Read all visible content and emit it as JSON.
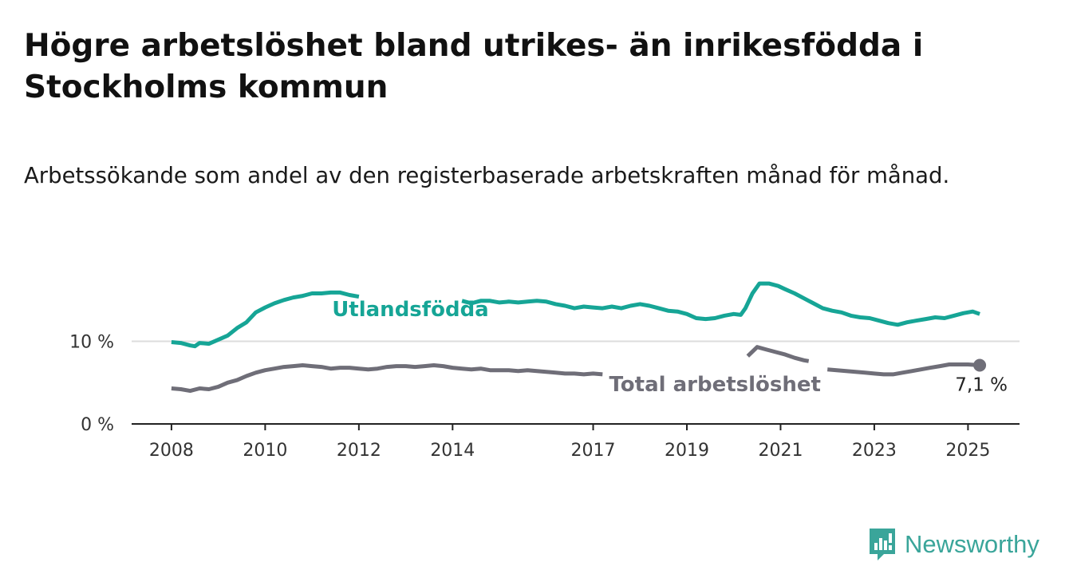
{
  "title": "Högre arbetslöshet bland utrikes- än inrikesfödda i Stockholms kommun",
  "subtitle": "Arbetssökande som andel av den registerbaserade arbetskraften månad för månad.",
  "logo": {
    "icon": "bar-chart-icon",
    "text": "Newsworthy"
  },
  "chart_data": {
    "type": "line",
    "title": "Högre arbetslöshet bland utrikes- än inrikesfödda i Stockholms kommun",
    "subtitle": "Arbetssökande som andel av den registerbaserade arbetskraften månad för månad.",
    "xlabel": "",
    "ylabel": "",
    "x_range": [
      2008.0,
      2025.25
    ],
    "x_display_range": [
      2007.15,
      2026.1
    ],
    "ylim": [
      0,
      20
    ],
    "x_ticks": [
      {
        "value": 2008,
        "label": "2008"
      },
      {
        "value": 2010,
        "label": "2010"
      },
      {
        "value": 2012,
        "label": "2012"
      },
      {
        "value": 2014,
        "label": "2014"
      },
      {
        "value": 2017,
        "label": "2017"
      },
      {
        "value": 2019,
        "label": "2019"
      },
      {
        "value": 2021,
        "label": "2021"
      },
      {
        "value": 2023,
        "label": "2023"
      },
      {
        "value": 2025,
        "label": "2025"
      }
    ],
    "y_ticks": [
      {
        "value": 0,
        "label": "0 %"
      },
      {
        "value": 10,
        "label": "10 %"
      }
    ],
    "grid": {
      "horizontal": true,
      "vertical": false
    },
    "legend": "inline labels",
    "series": [
      {
        "name": "Utlandsfödda",
        "color": "#16a596",
        "label": "Utlandsfödda",
        "gap": [
          2012.0,
          2014.2
        ],
        "points": [
          [
            2008.0,
            9.9
          ],
          [
            2008.2,
            9.8
          ],
          [
            2008.4,
            9.5
          ],
          [
            2008.5,
            9.4
          ],
          [
            2008.6,
            9.8
          ],
          [
            2008.8,
            9.7
          ],
          [
            2009.0,
            10.2
          ],
          [
            2009.2,
            10.7
          ],
          [
            2009.4,
            11.6
          ],
          [
            2009.6,
            12.3
          ],
          [
            2009.8,
            13.5
          ],
          [
            2010.0,
            14.1
          ],
          [
            2010.2,
            14.6
          ],
          [
            2010.4,
            15.0
          ],
          [
            2010.6,
            15.3
          ],
          [
            2010.8,
            15.5
          ],
          [
            2011.0,
            15.8
          ],
          [
            2011.2,
            15.8
          ],
          [
            2011.4,
            15.9
          ],
          [
            2011.6,
            15.9
          ],
          [
            2011.8,
            15.6
          ],
          [
            2012.0,
            15.4
          ],
          [
            2014.2,
            14.9
          ],
          [
            2014.4,
            14.6
          ],
          [
            2014.6,
            14.9
          ],
          [
            2014.8,
            14.9
          ],
          [
            2015.0,
            14.7
          ],
          [
            2015.2,
            14.8
          ],
          [
            2015.4,
            14.7
          ],
          [
            2015.6,
            14.8
          ],
          [
            2015.8,
            14.9
          ],
          [
            2016.0,
            14.8
          ],
          [
            2016.2,
            14.5
          ],
          [
            2016.4,
            14.3
          ],
          [
            2016.6,
            14.0
          ],
          [
            2016.8,
            14.2
          ],
          [
            2017.0,
            14.1
          ],
          [
            2017.2,
            14.0
          ],
          [
            2017.4,
            14.2
          ],
          [
            2017.6,
            14.0
          ],
          [
            2017.8,
            14.3
          ],
          [
            2018.0,
            14.5
          ],
          [
            2018.2,
            14.3
          ],
          [
            2018.4,
            14.0
          ],
          [
            2018.6,
            13.7
          ],
          [
            2018.8,
            13.6
          ],
          [
            2019.0,
            13.3
          ],
          [
            2019.2,
            12.8
          ],
          [
            2019.4,
            12.7
          ],
          [
            2019.6,
            12.8
          ],
          [
            2019.8,
            13.1
          ],
          [
            2020.0,
            13.3
          ],
          [
            2020.15,
            13.2
          ],
          [
            2020.25,
            14.0
          ],
          [
            2020.4,
            15.8
          ],
          [
            2020.55,
            17.0
          ],
          [
            2020.75,
            17.0
          ],
          [
            2020.95,
            16.7
          ],
          [
            2021.1,
            16.3
          ],
          [
            2021.3,
            15.8
          ],
          [
            2021.5,
            15.2
          ],
          [
            2021.7,
            14.6
          ],
          [
            2021.9,
            14.0
          ],
          [
            2022.1,
            13.7
          ],
          [
            2022.3,
            13.5
          ],
          [
            2022.5,
            13.1
          ],
          [
            2022.7,
            12.9
          ],
          [
            2022.9,
            12.8
          ],
          [
            2023.1,
            12.5
          ],
          [
            2023.3,
            12.2
          ],
          [
            2023.5,
            12.0
          ],
          [
            2023.7,
            12.3
          ],
          [
            2023.9,
            12.5
          ],
          [
            2024.1,
            12.7
          ],
          [
            2024.3,
            12.9
          ],
          [
            2024.5,
            12.8
          ],
          [
            2024.7,
            13.1
          ],
          [
            2024.9,
            13.4
          ],
          [
            2025.1,
            13.6
          ],
          [
            2025.25,
            13.3
          ]
        ]
      },
      {
        "name": "Total arbetslöshet",
        "color": "#6f6e78",
        "label": "Total arbetslöshet",
        "gap": [
          2017.2,
          2022.0
        ],
        "end_value_label": "7,1 %",
        "points": [
          [
            2008.0,
            4.3
          ],
          [
            2008.2,
            4.2
          ],
          [
            2008.4,
            4.0
          ],
          [
            2008.6,
            4.3
          ],
          [
            2008.8,
            4.2
          ],
          [
            2009.0,
            4.5
          ],
          [
            2009.2,
            5.0
          ],
          [
            2009.4,
            5.3
          ],
          [
            2009.6,
            5.8
          ],
          [
            2009.8,
            6.2
          ],
          [
            2010.0,
            6.5
          ],
          [
            2010.2,
            6.7
          ],
          [
            2010.4,
            6.9
          ],
          [
            2010.6,
            7.0
          ],
          [
            2010.8,
            7.1
          ],
          [
            2011.0,
            7.0
          ],
          [
            2011.2,
            6.9
          ],
          [
            2011.4,
            6.7
          ],
          [
            2011.6,
            6.8
          ],
          [
            2011.8,
            6.8
          ],
          [
            2012.0,
            6.7
          ],
          [
            2012.2,
            6.6
          ],
          [
            2012.4,
            6.7
          ],
          [
            2012.6,
            6.9
          ],
          [
            2012.8,
            7.0
          ],
          [
            2013.0,
            7.0
          ],
          [
            2013.2,
            6.9
          ],
          [
            2013.4,
            7.0
          ],
          [
            2013.6,
            7.1
          ],
          [
            2013.8,
            7.0
          ],
          [
            2014.0,
            6.8
          ],
          [
            2014.2,
            6.7
          ],
          [
            2014.4,
            6.6
          ],
          [
            2014.6,
            6.7
          ],
          [
            2014.8,
            6.5
          ],
          [
            2015.0,
            6.5
          ],
          [
            2015.2,
            6.5
          ],
          [
            2015.4,
            6.4
          ],
          [
            2015.6,
            6.5
          ],
          [
            2015.8,
            6.4
          ],
          [
            2016.0,
            6.3
          ],
          [
            2016.2,
            6.2
          ],
          [
            2016.4,
            6.1
          ],
          [
            2016.6,
            6.1
          ],
          [
            2016.8,
            6.0
          ],
          [
            2017.0,
            6.1
          ],
          [
            2017.2,
            6.0
          ],
          [
            2022.0,
            6.6
          ],
          [
            2022.2,
            6.5
          ],
          [
            2022.4,
            6.4
          ],
          [
            2022.6,
            6.3
          ],
          [
            2022.8,
            6.2
          ],
          [
            2023.0,
            6.1
          ],
          [
            2023.2,
            6.0
          ],
          [
            2023.4,
            6.0
          ],
          [
            2023.6,
            6.2
          ],
          [
            2023.8,
            6.4
          ],
          [
            2024.0,
            6.6
          ],
          [
            2024.2,
            6.8
          ],
          [
            2024.4,
            7.0
          ],
          [
            2024.6,
            7.2
          ],
          [
            2024.8,
            7.2
          ],
          [
            2025.0,
            7.2
          ],
          [
            2025.25,
            7.1
          ]
        ],
        "extra_fragments": [
          [
            [
              2020.3,
              8.2
            ],
            [
              2020.5,
              9.3
            ],
            [
              2020.7,
              9.0
            ],
            [
              2020.9,
              8.7
            ],
            [
              2021.1,
              8.4
            ],
            [
              2021.3,
              8.0
            ],
            [
              2021.5,
              7.7
            ],
            [
              2021.6,
              7.6
            ]
          ]
        ]
      }
    ]
  }
}
